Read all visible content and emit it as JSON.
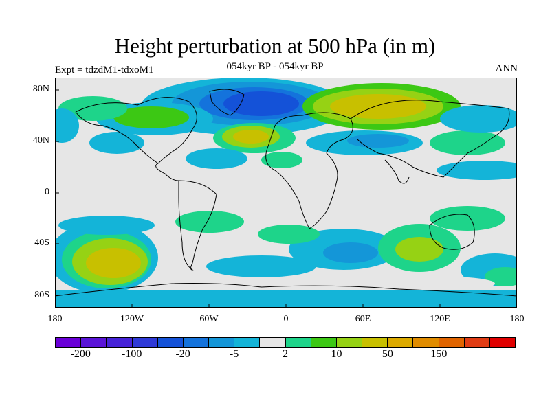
{
  "title": "Height perturbation at 500 hPa (in m)",
  "experiment": "Expt = tdzdM1-tdxoM1",
  "period": "054kyr BP - 054kyr BP",
  "season": "ANN",
  "lat_ticks": [
    "80N",
    "40N",
    "0",
    "40S",
    "80S"
  ],
  "lon_ticks": [
    "180",
    "120W",
    "60W",
    "0",
    "60E",
    "120E",
    "180"
  ],
  "colorbar": {
    "colors": [
      "#6a00d8",
      "#5a14d8",
      "#4623d8",
      "#2f3ad8",
      "#1452d8",
      "#1473dc",
      "#1496d8",
      "#14b4d8",
      "#e6e6e6",
      "#1ed48a",
      "#3cc814",
      "#96d214",
      "#c8c000",
      "#dcaa00",
      "#e08c00",
      "#e06400",
      "#e03c14",
      "#e00000"
    ],
    "labels": [
      "-200",
      "-100",
      "-20",
      "-5",
      "2",
      "10",
      "50",
      "150"
    ]
  }
}
